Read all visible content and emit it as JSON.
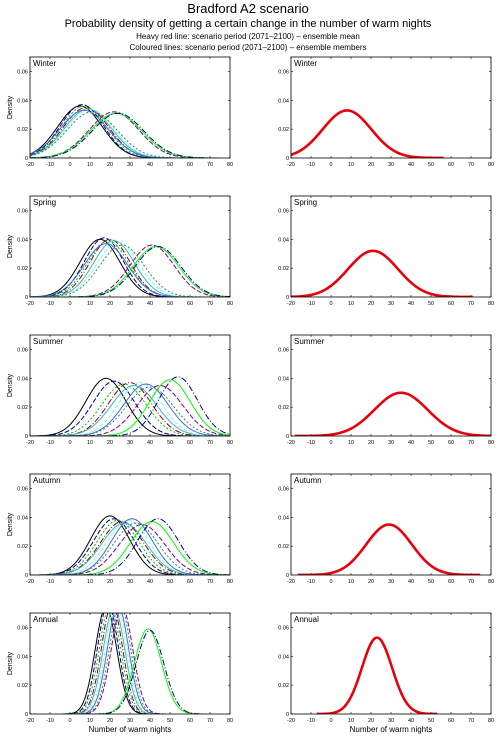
{
  "title": "Bradford A2 scenario",
  "subtitle": "Probability density of getting a certain change in the number of warm nights",
  "notes": [
    "Heavy red line: scenario period (2071–2100) – ensemble mean",
    "Coloured lines: scenario period (2071–2100) – ensemble members"
  ],
  "chart_data": {
    "type": "line",
    "xlabel": "Number of warm nights",
    "ylabel": "Density",
    "xlim": [
      -20,
      80
    ],
    "ylim": [
      0,
      0.07
    ],
    "xticks": [
      -20,
      -10,
      0,
      10,
      20,
      30,
      40,
      50,
      60,
      70,
      80
    ],
    "yticks": [
      0,
      0.02,
      0.04,
      0.06
    ],
    "ytick_labels": [
      "0",
      "0.02",
      "0.04",
      "0.06"
    ],
    "mean_color": "#e8000b",
    "member_colors": [
      "#000000",
      "#00008b",
      "#00c000",
      "#8b0000",
      "#3cb4c8",
      "#7fffd4",
      "#4169e1",
      "#2e8b57",
      "#800080",
      "#00ff00",
      "#000080",
      "#228b22"
    ],
    "panels": [
      {
        "season": "Winter",
        "ensemble_mean": {
          "peak_x": 8,
          "peak_density": 0.033
        },
        "members": [
          {
            "peak_x": 5,
            "peak_density": 0.036
          },
          {
            "peak_x": 6,
            "peak_density": 0.037
          },
          {
            "peak_x": 7,
            "peak_density": 0.036
          },
          {
            "peak_x": 8,
            "peak_density": 0.035
          },
          {
            "peak_x": 9,
            "peak_density": 0.034
          },
          {
            "peak_x": 10,
            "peak_density": 0.034
          },
          {
            "peak_x": 7,
            "peak_density": 0.033
          },
          {
            "peak_x": 11,
            "peak_density": 0.032
          },
          {
            "peak_x": 22,
            "peak_density": 0.032
          },
          {
            "peak_x": 23,
            "peak_density": 0.031
          },
          {
            "peak_x": 24,
            "peak_density": 0.031
          }
        ]
      },
      {
        "season": "Spring",
        "ensemble_mean": {
          "peak_x": 21,
          "peak_density": 0.032
        },
        "members": [
          {
            "peak_x": 15,
            "peak_density": 0.04
          },
          {
            "peak_x": 17,
            "peak_density": 0.041
          },
          {
            "peak_x": 19,
            "peak_density": 0.039
          },
          {
            "peak_x": 20,
            "peak_density": 0.04
          },
          {
            "peak_x": 22,
            "peak_density": 0.039
          },
          {
            "peak_x": 24,
            "peak_density": 0.038
          },
          {
            "peak_x": 18,
            "peak_density": 0.037
          },
          {
            "peak_x": 26,
            "peak_density": 0.036
          },
          {
            "peak_x": 41,
            "peak_density": 0.036
          },
          {
            "peak_x": 43,
            "peak_density": 0.035
          },
          {
            "peak_x": 44,
            "peak_density": 0.035
          }
        ]
      },
      {
        "season": "Summer",
        "ensemble_mean": {
          "peak_x": 35,
          "peak_density": 0.03
        },
        "members": [
          {
            "peak_x": 18,
            "peak_density": 0.04
          },
          {
            "peak_x": 22,
            "peak_density": 0.038
          },
          {
            "peak_x": 27,
            "peak_density": 0.036
          },
          {
            "peak_x": 30,
            "peak_density": 0.037
          },
          {
            "peak_x": 32,
            "peak_density": 0.035
          },
          {
            "peak_x": 35,
            "peak_density": 0.037
          },
          {
            "peak_x": 38,
            "peak_density": 0.036
          },
          {
            "peak_x": 40,
            "peak_density": 0.034
          },
          {
            "peak_x": 45,
            "peak_density": 0.035
          },
          {
            "peak_x": 50,
            "peak_density": 0.039
          },
          {
            "peak_x": 54,
            "peak_density": 0.041
          }
        ]
      },
      {
        "season": "Autumn",
        "ensemble_mean": {
          "peak_x": 29,
          "peak_density": 0.035
        },
        "members": [
          {
            "peak_x": 20,
            "peak_density": 0.041
          },
          {
            "peak_x": 22,
            "peak_density": 0.039
          },
          {
            "peak_x": 24,
            "peak_density": 0.038
          },
          {
            "peak_x": 26,
            "peak_density": 0.037
          },
          {
            "peak_x": 27,
            "peak_density": 0.036
          },
          {
            "peak_x": 29,
            "peak_density": 0.038
          },
          {
            "peak_x": 31,
            "peak_density": 0.039
          },
          {
            "peak_x": 33,
            "peak_density": 0.036
          },
          {
            "peak_x": 36,
            "peak_density": 0.035
          },
          {
            "peak_x": 41,
            "peak_density": 0.037
          },
          {
            "peak_x": 44,
            "peak_density": 0.039
          }
        ]
      },
      {
        "season": "Annual",
        "ensemble_mean": {
          "peak_x": 23,
          "peak_density": 0.053
        },
        "members": [
          {
            "peak_x": 18,
            "peak_density": 0.074
          },
          {
            "peak_x": 19,
            "peak_density": 0.076
          },
          {
            "peak_x": 20,
            "peak_density": 0.075
          },
          {
            "peak_x": 21,
            "peak_density": 0.076
          },
          {
            "peak_x": 22,
            "peak_density": 0.074
          },
          {
            "peak_x": 23,
            "peak_density": 0.077
          },
          {
            "peak_x": 24,
            "peak_density": 0.075
          },
          {
            "peak_x": 25,
            "peak_density": 0.076
          },
          {
            "peak_x": 26,
            "peak_density": 0.074
          },
          {
            "peak_x": 39,
            "peak_density": 0.059
          },
          {
            "peak_x": 40,
            "peak_density": 0.058
          }
        ]
      }
    ]
  }
}
